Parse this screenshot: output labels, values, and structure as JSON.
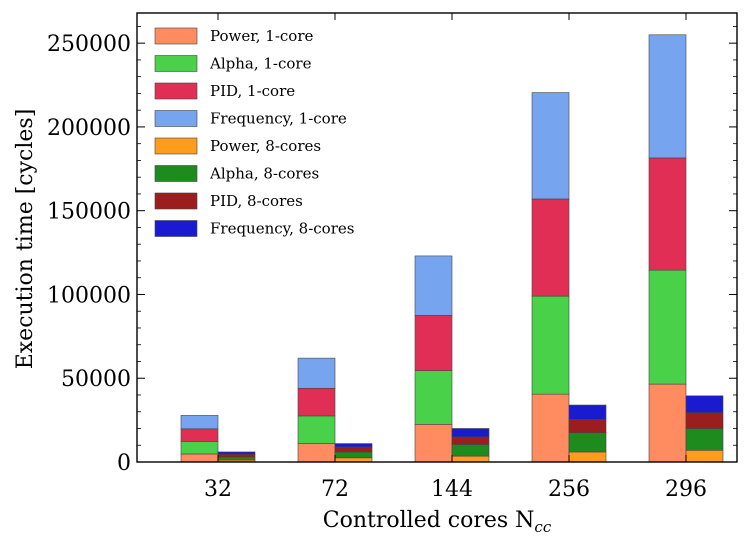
{
  "chart_data": {
    "type": "bar",
    "stacked": true,
    "grouped": true,
    "title": "",
    "xlabel": "Controlled cores N",
    "xlabel_subscript": "cc",
    "ylabel": "Execution time [cycles]",
    "ylim": [
      0,
      268000
    ],
    "yticks": [
      0,
      50000,
      100000,
      150000,
      200000,
      250000
    ],
    "categories": [
      "32",
      "72",
      "144",
      "256",
      "296"
    ],
    "groups": [
      {
        "name": "1-core",
        "series": [
          {
            "name": "Power, 1-core",
            "color": "#ff8c61",
            "values": [
              4800,
              11000,
              22500,
              40500,
              46500
            ]
          },
          {
            "name": "Alpha, 1-core",
            "color": "#49d249",
            "values": [
              7500,
              16500,
              32000,
              58500,
              68000
            ]
          },
          {
            "name": "PID, 1-core",
            "color": "#e02e55",
            "values": [
              7500,
              16500,
              33000,
              58000,
              67000
            ]
          },
          {
            "name": "Frequency, 1-core",
            "color": "#76a4ef",
            "values": [
              8000,
              18000,
              35500,
              63500,
              73500
            ]
          }
        ]
      },
      {
        "name": "8-cores",
        "series": [
          {
            "name": "Power, 8-cores",
            "color": "#ff9b1d",
            "values": [
              1200,
              2500,
              3500,
              6000,
              7000
            ]
          },
          {
            "name": "Alpha, 8-cores",
            "color": "#1e8b1e",
            "values": [
              1700,
              3500,
              7000,
              11500,
              13000
            ]
          },
          {
            "name": "PID, 8-cores",
            "color": "#9b1d1d",
            "values": [
              1700,
              3000,
              4500,
              8000,
              9500
            ]
          },
          {
            "name": "Frequency, 8-cores",
            "color": "#1a1ad0",
            "values": [
              1400,
              2000,
              5000,
              8500,
              10000
            ]
          }
        ]
      }
    ],
    "legend_position": "top-left"
  }
}
